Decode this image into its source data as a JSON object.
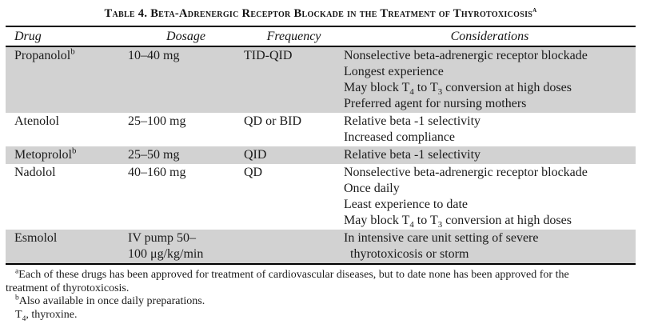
{
  "title": {
    "text": "Table 4. Beta-Adrenergic Receptor Blockade in the Treatment of Thyrotoxicosis^{a}"
  },
  "table": {
    "shaded_row_color": "#d2d2d2",
    "columns": [
      "Drug",
      "Dosage",
      "Frequency",
      "Considerations"
    ],
    "rows": [
      {
        "drug": "Propanolol^{b}",
        "dosage": [
          "10–40 mg"
        ],
        "frequency": "TID-QID",
        "considerations": [
          "Nonselective beta-adrenergic receptor blockade",
          "Longest experience",
          "May block T_{4} to T_{3} conversion at high doses",
          "Preferred agent for nursing mothers"
        ],
        "shaded": true
      },
      {
        "drug": "Atenolol",
        "dosage": [
          "25–100 mg"
        ],
        "frequency": "QD or BID",
        "considerations": [
          "Relative beta -1 selectivity",
          "Increased compliance"
        ],
        "shaded": false
      },
      {
        "drug": "Metoprolol^{b}",
        "dosage": [
          "25–50 mg"
        ],
        "frequency": "QID",
        "considerations": [
          "Relative beta -1 selectivity"
        ],
        "shaded": true
      },
      {
        "drug": "Nadolol",
        "dosage": [
          "40–160 mg"
        ],
        "frequency": "QD",
        "considerations": [
          "Nonselective beta-adrenergic receptor blockade",
          "Once daily",
          "Least experience to date",
          "May block T_{4} to T_{3} conversion at high doses"
        ],
        "shaded": false
      },
      {
        "drug": "Esmolol",
        "dosage": [
          "IV pump 50–",
          "100 μg/kg/min"
        ],
        "frequency": "",
        "considerations": [
          "In intensive care unit setting of severe",
          "  thyrotoxicosis or storm"
        ],
        "shaded": true
      }
    ]
  },
  "footnotes": [
    {
      "text": "^{a}Each of these drugs has been approved for treatment of cardiovascular diseases, but to date none has been approved for the",
      "indent": true
    },
    {
      "text": "treatment of thyrotoxicosis.",
      "indent": false
    },
    {
      "text": "^{b}Also available in once daily preparations.",
      "indent": true
    },
    {
      "text": "T_{4}, thyroxine.",
      "indent": true
    }
  ]
}
